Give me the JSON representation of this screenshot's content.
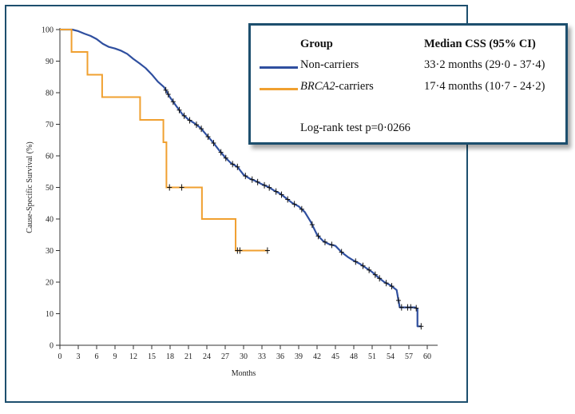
{
  "chart_data": {
    "type": "line",
    "subtype": "kaplan-meier",
    "ylabel": "Cause-Specific Survival (%)",
    "xlabel": "Months",
    "xlim": [
      0,
      60
    ],
    "ylim": [
      0,
      100
    ],
    "xticks": [
      0,
      3,
      6,
      9,
      12,
      15,
      18,
      21,
      24,
      27,
      30,
      33,
      36,
      39,
      42,
      45,
      48,
      51,
      54,
      57,
      60
    ],
    "yticks": [
      0,
      10,
      20,
      30,
      40,
      50,
      60,
      70,
      80,
      90,
      100
    ],
    "series": [
      {
        "name": "Non-carriers",
        "color": "#2f4f9f",
        "points": [
          [
            0,
            100
          ],
          [
            2,
            100
          ],
          [
            3,
            99.5
          ],
          [
            4,
            98.7
          ],
          [
            5,
            98
          ],
          [
            6,
            97
          ],
          [
            7,
            95.5
          ],
          [
            8,
            94.5
          ],
          [
            9,
            94
          ],
          [
            10,
            93.3
          ],
          [
            11,
            92.3
          ],
          [
            12,
            90.7
          ],
          [
            13,
            89.3
          ],
          [
            14,
            87.8
          ],
          [
            15,
            85.8
          ],
          [
            16,
            83.5
          ],
          [
            17,
            81.8
          ],
          [
            18,
            78.5
          ],
          [
            19,
            75.8
          ],
          [
            20,
            73.2
          ],
          [
            21,
            71.5
          ],
          [
            22,
            70.3
          ],
          [
            23,
            68.8
          ],
          [
            24,
            66.5
          ],
          [
            25,
            64.3
          ],
          [
            26,
            61.8
          ],
          [
            27,
            59.5
          ],
          [
            28,
            57.6
          ],
          [
            29,
            56.5
          ],
          [
            30,
            54
          ],
          [
            31,
            52.8
          ],
          [
            32,
            52
          ],
          [
            33,
            51
          ],
          [
            34,
            50.2
          ],
          [
            35,
            49
          ],
          [
            36,
            48
          ],
          [
            37,
            46.5
          ],
          [
            38,
            45
          ],
          [
            39,
            44
          ],
          [
            40,
            42.2
          ],
          [
            41,
            39
          ],
          [
            42,
            35
          ],
          [
            43,
            33
          ],
          [
            44,
            32
          ],
          [
            45,
            31.5
          ],
          [
            46,
            29.5
          ],
          [
            47,
            28
          ],
          [
            48,
            26.8
          ],
          [
            49,
            25.8
          ],
          [
            50,
            24.5
          ],
          [
            51,
            23.2
          ],
          [
            52,
            21.5
          ],
          [
            53,
            20
          ],
          [
            54,
            19
          ],
          [
            55,
            17.5
          ],
          [
            55.5,
            12
          ],
          [
            58,
            12
          ],
          [
            58.4,
            11.5
          ],
          [
            58.4,
            6
          ],
          [
            59,
            6
          ]
        ],
        "censor_x": [
          17.3,
          17.7,
          18.5,
          19.5,
          20.3,
          21.2,
          22.3,
          23.1,
          24.2,
          25.1,
          26.3,
          27.1,
          28.2,
          29,
          30.3,
          31.4,
          32.3,
          33.4,
          34.2,
          35.3,
          36.2,
          37.2,
          38.3,
          39.5,
          41.2,
          42.2,
          43.3,
          44.4,
          46,
          48.3,
          49.5,
          50.5,
          51.5,
          52.2,
          53.3,
          54.2,
          55.3,
          55.8,
          56.8,
          57.3,
          58.2,
          59
        ]
      },
      {
        "name": "BRCA2-carriers",
        "color": "#f0a030",
        "points": [
          [
            0,
            100
          ],
          [
            1.9,
            100
          ],
          [
            1.9,
            92.9
          ],
          [
            4.5,
            92.9
          ],
          [
            4.5,
            85.7
          ],
          [
            6.9,
            85.7
          ],
          [
            6.9,
            78.6
          ],
          [
            13.1,
            78.6
          ],
          [
            13.1,
            71.4
          ],
          [
            16.9,
            71.4
          ],
          [
            16.9,
            64.3
          ],
          [
            17.4,
            64.3
          ],
          [
            17.4,
            50
          ],
          [
            23.2,
            50
          ],
          [
            23.2,
            40
          ],
          [
            28.7,
            40
          ],
          [
            28.7,
            30
          ],
          [
            33.9,
            30
          ]
        ],
        "censor_x": [
          17.9,
          19.9,
          29,
          29.4,
          33.9
        ]
      }
    ]
  },
  "legend": {
    "group_header": "Group",
    "median_header": "Median CSS (95% CI)",
    "rows": [
      {
        "name": "Non-carriers",
        "median": "33·2 months (29·0 - 37·4)"
      },
      {
        "name_italic": "BRCA2",
        "name_suffix": "-carriers",
        "median": "17·4 months (10·7 - 24·2)"
      }
    ],
    "logrank": "Log-rank test p=0·0266"
  }
}
